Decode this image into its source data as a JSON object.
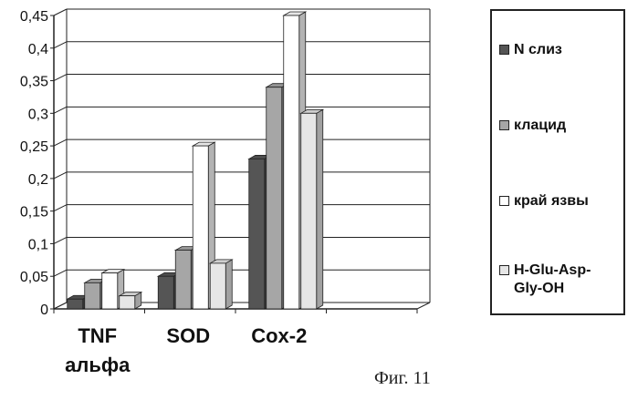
{
  "chart_data": {
    "type": "bar",
    "categories": [
      "TNF альфа",
      "SOD",
      "Cox-2",
      ""
    ],
    "category_lines": [
      [
        "TNF",
        "альфа"
      ],
      [
        "SOD"
      ],
      [
        "Cox-2"
      ],
      [
        ""
      ]
    ],
    "series": [
      {
        "name": "N слиз",
        "values": [
          0.015,
          0.05,
          0.23,
          null
        ],
        "color": "#555555"
      },
      {
        "name": "клацид",
        "values": [
          0.04,
          0.09,
          0.34,
          null
        ],
        "color": "#a6a6a6"
      },
      {
        "name": "край язвы",
        "values": [
          0.055,
          0.25,
          0.45,
          null
        ],
        "color": "#ffffff"
      },
      {
        "name": "H-Glu-Asp-Gly-OH",
        "values": [
          0.02,
          0.07,
          0.3,
          null
        ],
        "color": "#e6e6e6"
      }
    ],
    "yticks": [
      "0",
      "0,05",
      "0,1",
      "0,15",
      "0,2",
      "0,25",
      "0,3",
      "0,35",
      "0,4",
      "0,45"
    ],
    "ylim": [
      0,
      0.45
    ],
    "grid": true,
    "style": "3d-column",
    "legend_position": "right",
    "caption": "Фиг. 11"
  },
  "legend_items": [
    {
      "lines": [
        "N слиз"
      ],
      "color": "#555555"
    },
    {
      "lines": [
        "клацид"
      ],
      "color": "#a6a6a6"
    },
    {
      "lines": [
        "край язвы"
      ],
      "color": "#ffffff"
    },
    {
      "lines": [
        "H-Glu-Asp-",
        "Gly-OH"
      ],
      "color": "#e6e6e6"
    }
  ]
}
